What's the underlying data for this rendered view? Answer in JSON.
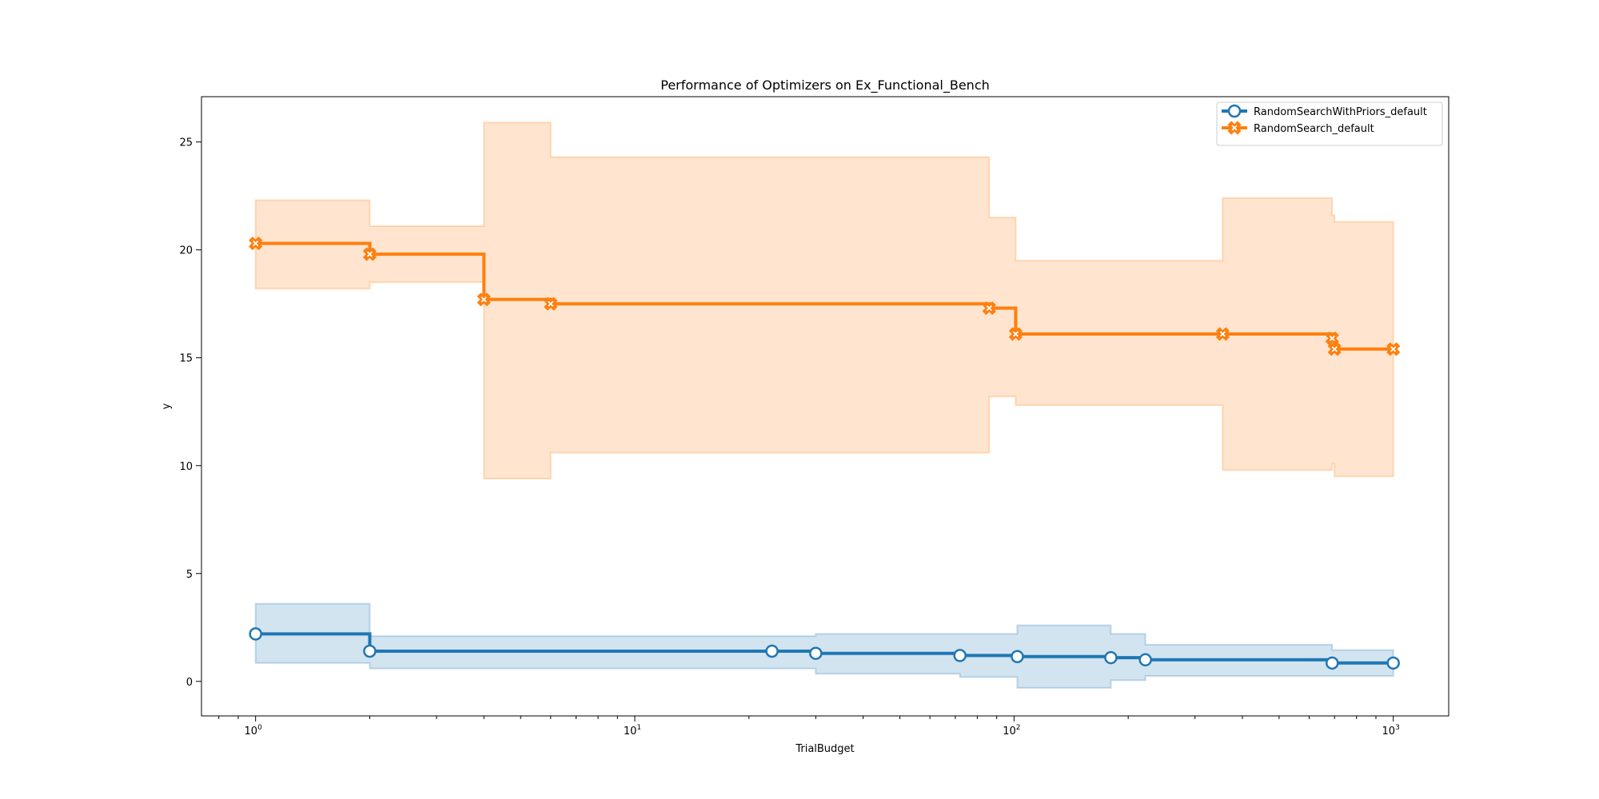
{
  "chart_data": {
    "type": "line",
    "title": "Performance of Optimizers on Ex_Functional_Bench",
    "xlabel": "TrialBudget",
    "ylabel": "y",
    "xscale": "log",
    "xlim": [
      0.72,
      1400
    ],
    "ylim": [
      -1.6,
      27.1
    ],
    "xticks": [
      {
        "value": 1,
        "base": "10",
        "exp": "0"
      },
      {
        "value": 10,
        "base": "10",
        "exp": "1"
      },
      {
        "value": 100,
        "base": "10",
        "exp": "2"
      },
      {
        "value": 1000,
        "base": "10",
        "exp": "3"
      }
    ],
    "yticks": [
      0,
      5,
      10,
      15,
      20,
      25
    ],
    "grid": false,
    "legend_position": "top-right",
    "series": [
      {
        "name": "RandomSearchWithPriors_default",
        "color": "#1f77b4",
        "marker": "circle",
        "drawstyle": "steps-post",
        "x": [
          1,
          2,
          23,
          30,
          72,
          102,
          180,
          222,
          690,
          1000
        ],
        "y": [
          2.2,
          1.4,
          1.4,
          1.3,
          1.2,
          1.15,
          1.1,
          1.0,
          0.85,
          0.85
        ],
        "lower": [
          0.85,
          0.6,
          0.6,
          0.35,
          0.2,
          -0.3,
          0.05,
          0.25,
          0.25,
          0.25
        ],
        "upper": [
          3.6,
          2.1,
          2.1,
          2.2,
          2.2,
          2.6,
          2.2,
          1.7,
          1.45,
          1.45
        ]
      },
      {
        "name": "RandomSearch_default",
        "color": "#ff7f0e",
        "marker": "x-filled",
        "drawstyle": "steps-post",
        "x": [
          1,
          2,
          4,
          6,
          86,
          101,
          355,
          690,
          700,
          1000
        ],
        "y": [
          20.3,
          19.8,
          17.7,
          17.5,
          17.3,
          16.1,
          16.1,
          15.9,
          15.4,
          15.4
        ],
        "lower": [
          18.2,
          18.5,
          9.4,
          10.6,
          13.2,
          12.8,
          9.8,
          10.1,
          9.5,
          9.5
        ],
        "upper": [
          22.3,
          21.1,
          25.9,
          24.3,
          21.5,
          19.5,
          22.4,
          21.6,
          21.3,
          21.3
        ]
      }
    ]
  }
}
